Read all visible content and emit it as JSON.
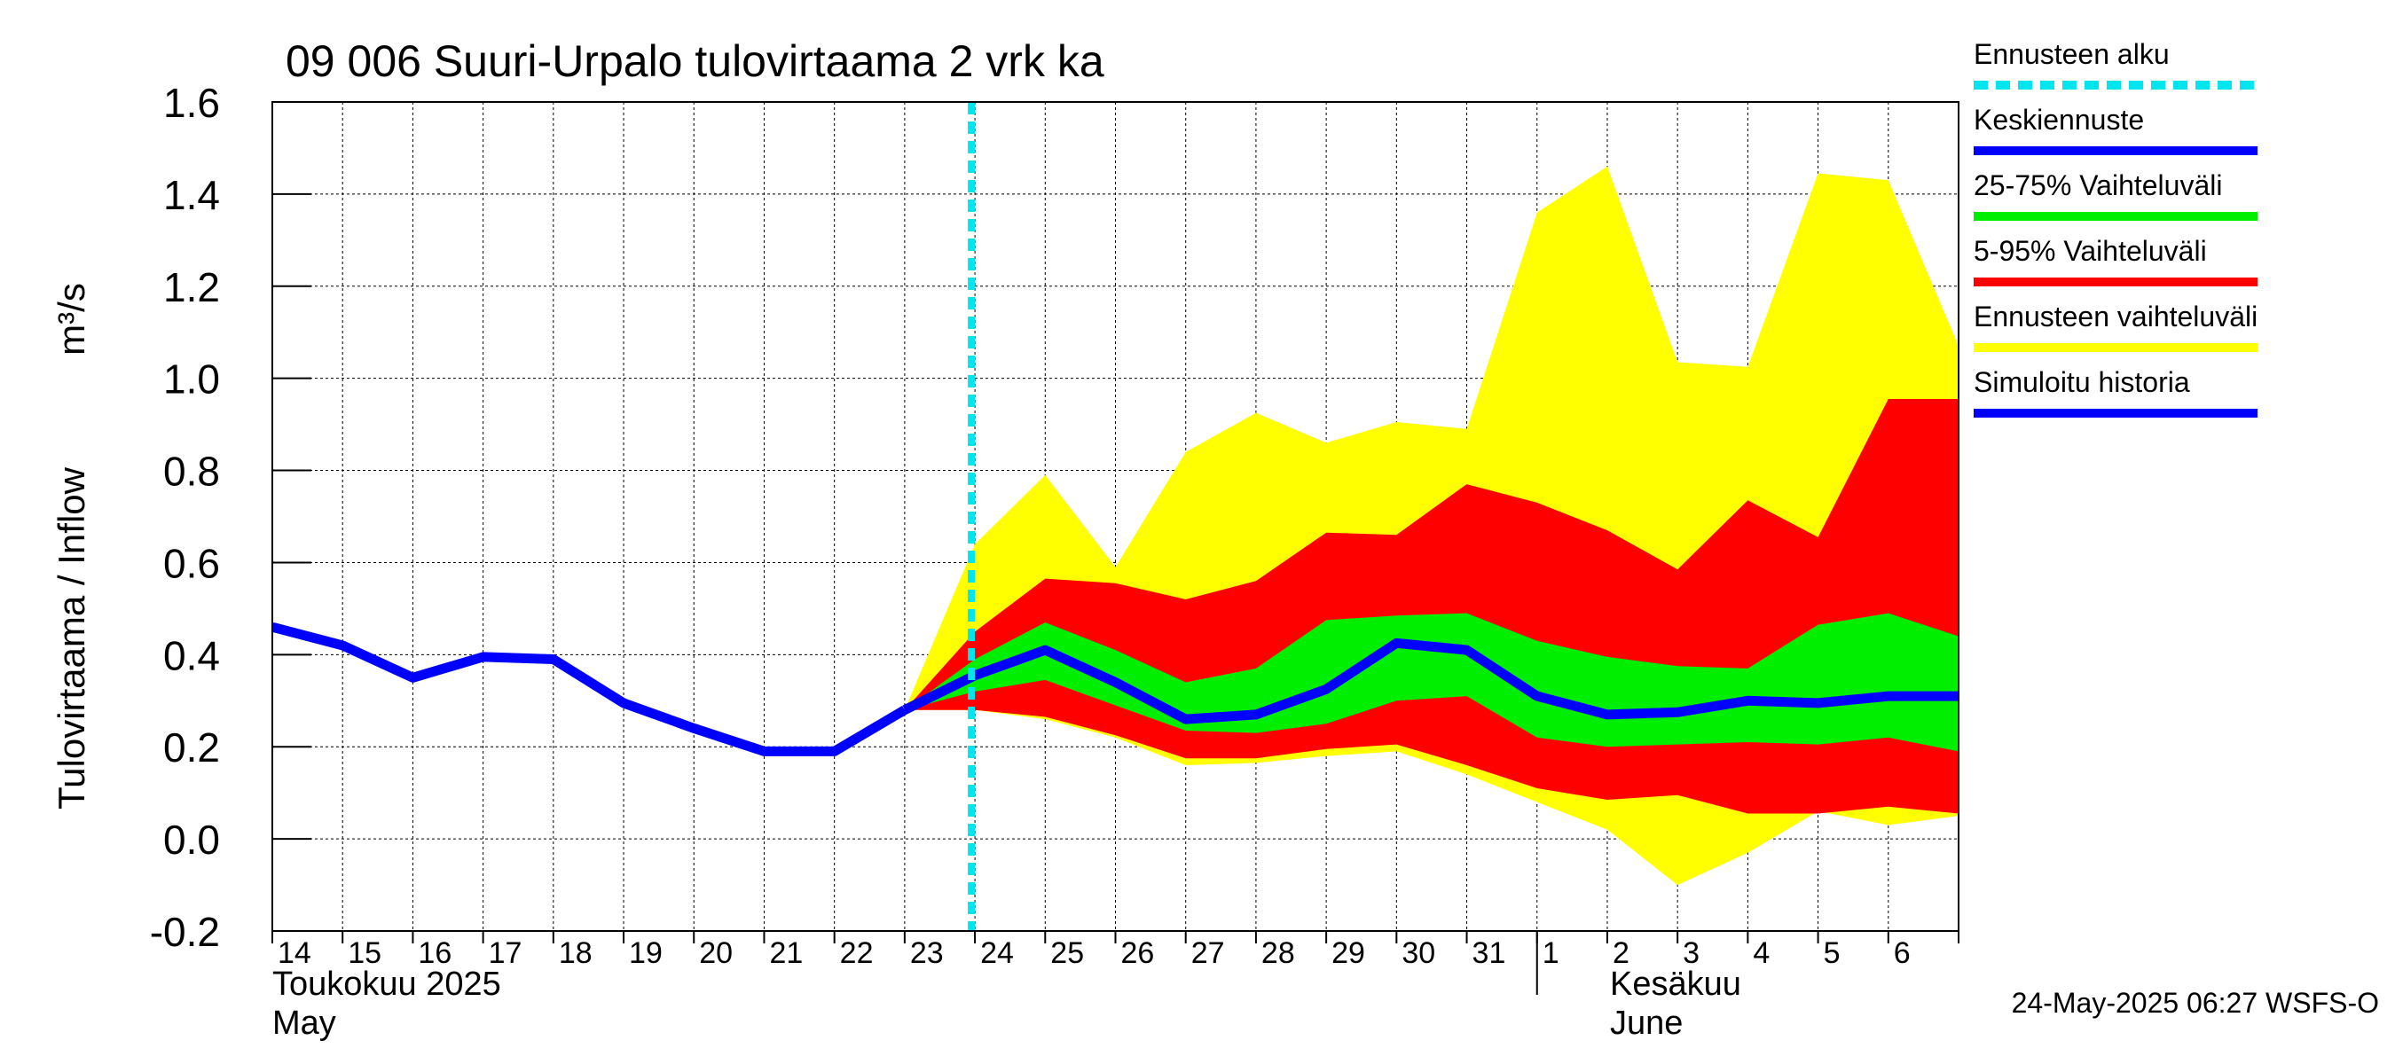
{
  "chart_data": {
    "type": "area",
    "title": "09 006 Suuri-Urpalo tulovirtaama 2 vrk ka",
    "ylabel_left": "Tulovirtaama / Inflow",
    "ylabel_right": "m³/s",
    "ylim": [
      -0.2,
      1.6
    ],
    "yticks": [
      "-0.2",
      "0.0",
      "0.2",
      "0.4",
      "0.6",
      "0.8",
      "1.0",
      "1.2",
      "1.4",
      "1.6"
    ],
    "grid": true,
    "x_day_index_range": [
      0,
      24
    ],
    "x_tick_labels": [
      "14",
      "15",
      "16",
      "17",
      "18",
      "19",
      "20",
      "21",
      "22",
      "23",
      "24",
      "25",
      "26",
      "27",
      "28",
      "29",
      "30",
      "31",
      "1",
      "2",
      "3",
      "4",
      "5",
      "6"
    ],
    "month_labels": {
      "may_fi": "Toukokuu  2025",
      "may_en": "May",
      "june_fi": "Kesäkuu",
      "june_en": "June"
    },
    "month_boundary_day_index": 18,
    "forecast_start_day_index": 9.95,
    "series": [
      {
        "name": "Simuloitu historia",
        "color": "#0000ff",
        "x": [
          0,
          1,
          2,
          3,
          4,
          5,
          6,
          7,
          8,
          9
        ],
        "values": [
          0.46,
          0.42,
          0.35,
          0.395,
          0.39,
          0.295,
          0.24,
          0.19,
          0.19,
          0.28
        ]
      },
      {
        "name": "Keskiennuste",
        "color": "#0000ff",
        "x": [
          9,
          10,
          11,
          12,
          13,
          14,
          15,
          16,
          17,
          18,
          19,
          20,
          21,
          22,
          23,
          24
        ],
        "values": [
          0.28,
          0.355,
          0.41,
          0.34,
          0.26,
          0.27,
          0.325,
          0.425,
          0.41,
          0.31,
          0.27,
          0.275,
          0.3,
          0.295,
          0.31,
          0.31
        ]
      },
      {
        "name": "Ennusteen vaihteluväli",
        "color": "#ffff00",
        "x": [
          9,
          10,
          11,
          12,
          13,
          14,
          15,
          16,
          17,
          18,
          19,
          20,
          21,
          22,
          23,
          24
        ],
        "upper": [
          0.28,
          0.64,
          0.79,
          0.59,
          0.84,
          0.925,
          0.86,
          0.905,
          0.89,
          1.36,
          1.46,
          1.035,
          1.025,
          1.445,
          1.43,
          1.07
        ],
        "lower": [
          0.28,
          0.28,
          0.26,
          0.22,
          0.16,
          0.165,
          0.18,
          0.19,
          0.14,
          0.08,
          0.02,
          -0.1,
          -0.03,
          0.06,
          0.03,
          0.05
        ]
      },
      {
        "name": "5-95% Vaihteluväli",
        "color": "#ff0000",
        "x": [
          9,
          10,
          11,
          12,
          13,
          14,
          15,
          16,
          17,
          18,
          19,
          20,
          21,
          22,
          23,
          24
        ],
        "upper": [
          0.28,
          0.45,
          0.565,
          0.555,
          0.52,
          0.56,
          0.665,
          0.66,
          0.77,
          0.73,
          0.67,
          0.585,
          0.735,
          0.655,
          0.955,
          0.955
        ],
        "lower": [
          0.28,
          0.28,
          0.265,
          0.225,
          0.175,
          0.175,
          0.195,
          0.205,
          0.16,
          0.11,
          0.085,
          0.095,
          0.055,
          0.055,
          0.07,
          0.055
        ]
      },
      {
        "name": "25-75% Vaihteluväli",
        "color": "#00ee00",
        "x": [
          9,
          10,
          11,
          12,
          13,
          14,
          15,
          16,
          17,
          18,
          19,
          20,
          21,
          22,
          23,
          24
        ],
        "upper": [
          0.28,
          0.39,
          0.47,
          0.41,
          0.34,
          0.37,
          0.475,
          0.485,
          0.49,
          0.43,
          0.395,
          0.375,
          0.37,
          0.465,
          0.49,
          0.44
        ],
        "lower": [
          0.28,
          0.32,
          0.345,
          0.29,
          0.235,
          0.23,
          0.25,
          0.3,
          0.31,
          0.22,
          0.2,
          0.205,
          0.21,
          0.205,
          0.22,
          0.19
        ]
      }
    ],
    "legend": [
      {
        "label": "Ennusteen alku",
        "color": "#00e5ee",
        "style": "dashed"
      },
      {
        "label": "Keskiennuste",
        "color": "#0000ff",
        "style": "solid"
      },
      {
        "label": "25-75% Vaihteluväli",
        "color": "#00ee00",
        "style": "solid"
      },
      {
        "label": "5-95% Vaihteluväli",
        "color": "#ff0000",
        "style": "solid"
      },
      {
        "label": "Ennusteen vaihteluväli",
        "color": "#ffff00",
        "style": "solid"
      },
      {
        "label": "Simuloitu historia",
        "color": "#0000ff",
        "style": "solid"
      }
    ],
    "legend_position": "right",
    "footer": "24-May-2025 06:27 WSFS-O"
  }
}
